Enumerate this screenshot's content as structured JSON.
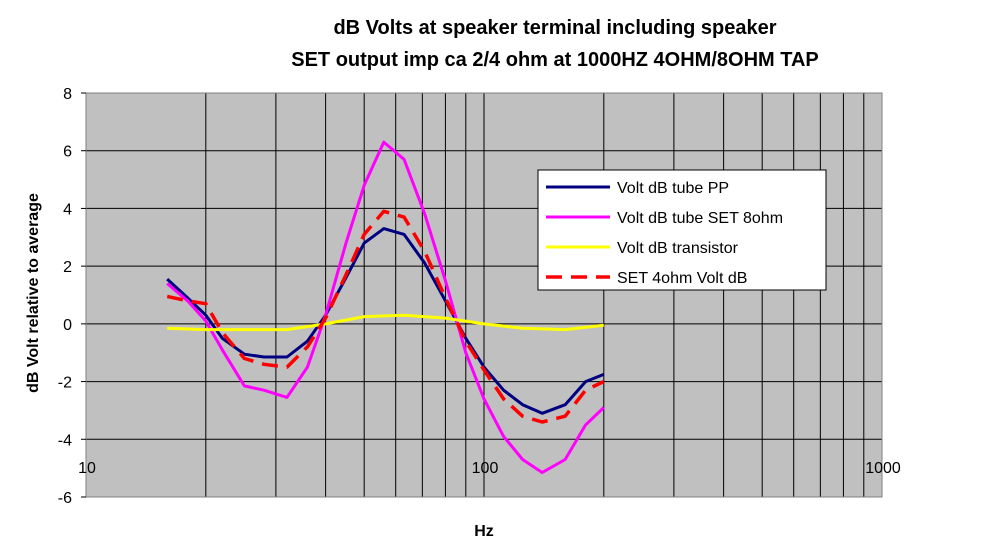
{
  "chart_data": {
    "type": "line",
    "title": "dB Volts at speaker terminal including speaker",
    "subtitle": "SET output imp ca 2/4 ohm at 1000HZ 4OHM/8OHM TAP",
    "xlabel": "Hz",
    "ylabel": "dB Volt relative to average",
    "xscale": "log",
    "xlim": [
      10,
      1000
    ],
    "ylim": [
      -6,
      8
    ],
    "xticks": [
      10,
      100,
      1000
    ],
    "yticks": [
      -6,
      -4,
      -2,
      0,
      2,
      4,
      6,
      8
    ],
    "grid": true,
    "plot_background": "#c0c0c0",
    "legend_position": "right",
    "series": [
      {
        "name": "Volt dB tube PP",
        "color": "#000080",
        "dash": "solid",
        "x": [
          16,
          18,
          20,
          22,
          25,
          28,
          32,
          36,
          40,
          45,
          50,
          56,
          63,
          71,
          80,
          90,
          100,
          112,
          125,
          140,
          160,
          180,
          200
        ],
        "y": [
          1.55,
          0.9,
          0.3,
          -0.5,
          -1.05,
          -1.15,
          -1.15,
          -0.6,
          0.3,
          1.6,
          2.8,
          3.3,
          3.1,
          2.1,
          0.8,
          -0.5,
          -1.5,
          -2.3,
          -2.8,
          -3.1,
          -2.8,
          -2.0,
          -1.75
        ]
      },
      {
        "name": "Volt dB tube SET 8ohm",
        "color": "#ff00ff",
        "dash": "solid",
        "x": [
          16,
          18,
          20,
          22,
          25,
          28,
          32,
          36,
          40,
          45,
          50,
          56,
          63,
          71,
          80,
          90,
          100,
          112,
          125,
          140,
          160,
          180,
          200
        ],
        "y": [
          1.4,
          0.8,
          0.1,
          -0.9,
          -2.15,
          -2.3,
          -2.55,
          -1.5,
          0.3,
          2.8,
          4.8,
          6.3,
          5.7,
          3.8,
          1.5,
          -1.0,
          -2.6,
          -3.9,
          -4.7,
          -5.15,
          -4.7,
          -3.5,
          -2.9
        ]
      },
      {
        "name": "Volt dB transistor",
        "color": "#ffff00",
        "dash": "solid",
        "x": [
          16,
          20,
          25,
          32,
          40,
          50,
          63,
          80,
          100,
          125,
          160,
          200
        ],
        "y": [
          -0.15,
          -0.2,
          -0.2,
          -0.2,
          0.0,
          0.25,
          0.3,
          0.2,
          0.0,
          -0.15,
          -0.2,
          -0.05
        ]
      },
      {
        "name": "SET 4ohm Volt dB",
        "color": "#ff0000",
        "dash": "dashed",
        "x": [
          16,
          18,
          20,
          22,
          25,
          28,
          32,
          36,
          40,
          45,
          50,
          56,
          63,
          71,
          80,
          90,
          100,
          112,
          125,
          140,
          160,
          180,
          200
        ],
        "y": [
          0.95,
          0.8,
          0.7,
          -0.3,
          -1.2,
          -1.4,
          -1.5,
          -0.8,
          0.2,
          1.7,
          3.1,
          3.9,
          3.7,
          2.5,
          0.9,
          -0.6,
          -1.6,
          -2.6,
          -3.2,
          -3.4,
          -3.2,
          -2.3,
          -2.0
        ]
      }
    ]
  }
}
